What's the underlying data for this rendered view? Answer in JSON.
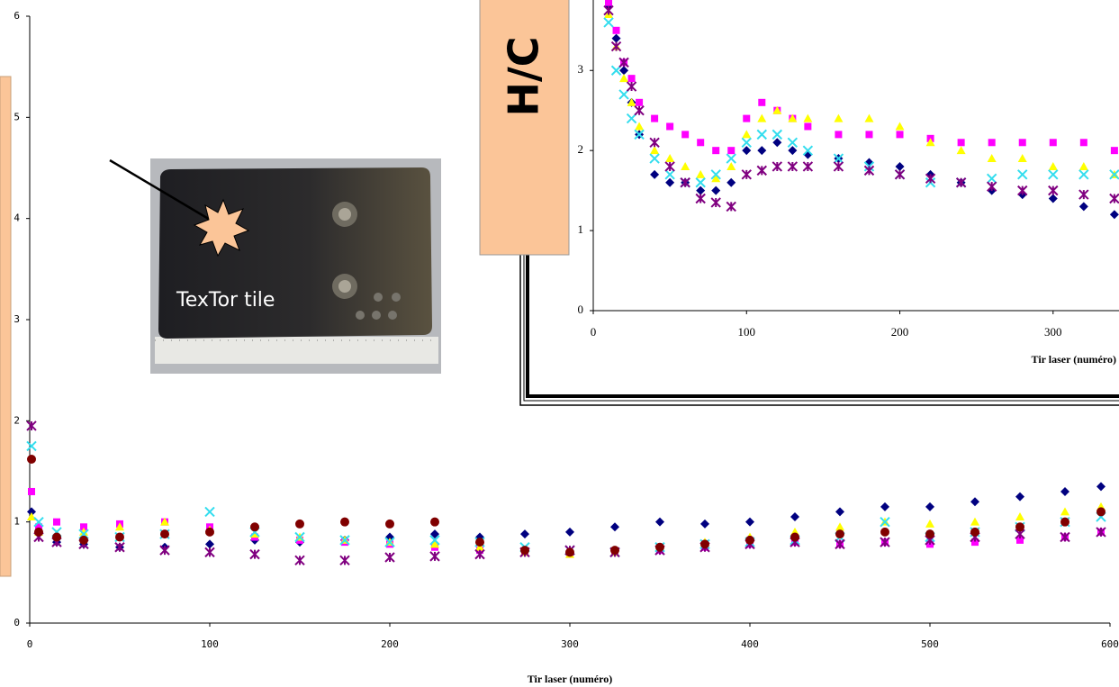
{
  "chart_data": [
    {
      "type": "scatter",
      "xlabel": "Tir laser (numéro)",
      "annotations": [
        "TexTor tile"
      ],
      "xlim": [
        0,
        600
      ],
      "ylim": [
        0,
        6
      ],
      "xticks": [
        0,
        100,
        200,
        300,
        400,
        500,
        600
      ],
      "yticks": [
        0,
        1,
        2,
        3,
        4,
        5,
        6
      ],
      "x": [
        1,
        5,
        15,
        30,
        50,
        75,
        100,
        125,
        150,
        175,
        200,
        225,
        250,
        275,
        300,
        325,
        350,
        375,
        400,
        425,
        450,
        475,
        500,
        525,
        550,
        575,
        595
      ],
      "series": [
        {
          "color": "#000080",
          "marker": "diamond",
          "values": [
            1.1,
            0.9,
            0.8,
            0.78,
            0.75,
            0.75,
            0.78,
            0.82,
            0.8,
            0.82,
            0.85,
            0.88,
            0.85,
            0.88,
            0.9,
            0.95,
            1.0,
            0.98,
            1.0,
            1.05,
            1.1,
            1.15,
            1.15,
            1.2,
            1.25,
            1.3,
            1.35
          ]
        },
        {
          "color": "#ff00ff",
          "marker": "square",
          "values": [
            1.3,
            0.95,
            1.0,
            0.95,
            0.98,
            1.0,
            0.95,
            0.85,
            0.82,
            0.8,
            0.78,
            0.75,
            0.72,
            0.7,
            0.68,
            0.7,
            0.72,
            0.75,
            0.78,
            0.8,
            0.78,
            0.8,
            0.78,
            0.8,
            0.82,
            0.85,
            0.9
          ]
        },
        {
          "color": "#ffff00",
          "marker": "triangle",
          "values": [
            1.05,
            0.9,
            0.88,
            0.9,
            0.95,
            1.0,
            0.92,
            0.88,
            0.85,
            0.82,
            0.8,
            0.78,
            0.75,
            0.7,
            0.68,
            0.7,
            0.75,
            0.8,
            0.85,
            0.9,
            0.95,
            1.0,
            0.98,
            1.0,
            1.05,
            1.1,
            1.15
          ]
        },
        {
          "color": "#33ddee",
          "marker": "cross",
          "values": [
            1.75,
            1.0,
            0.9,
            0.88,
            0.85,
            0.88,
            1.1,
            0.9,
            0.85,
            0.82,
            0.8,
            0.82,
            0.8,
            0.75,
            0.72,
            0.7,
            0.75,
            0.78,
            0.8,
            0.82,
            0.85,
            1.0,
            0.85,
            0.9,
            0.95,
            1.0,
            1.05
          ]
        },
        {
          "color": "#800080",
          "marker": "star",
          "values": [
            1.95,
            0.85,
            0.8,
            0.78,
            0.75,
            0.72,
            0.7,
            0.68,
            0.62,
            0.62,
            0.65,
            0.66,
            0.68,
            0.7,
            0.72,
            0.7,
            0.72,
            0.75,
            0.78,
            0.8,
            0.78,
            0.8,
            0.82,
            0.85,
            0.88,
            0.85,
            0.9
          ]
        },
        {
          "color": "#800000",
          "marker": "circle",
          "values": [
            1.62,
            0.9,
            0.85,
            0.82,
            0.85,
            0.88,
            0.9,
            0.95,
            0.98,
            1.0,
            0.98,
            1.0,
            0.8,
            0.72,
            0.7,
            0.72,
            0.75,
            0.78,
            0.82,
            0.85,
            0.88,
            0.9,
            0.88,
            0.9,
            0.95,
            1.0,
            1.1
          ]
        }
      ]
    },
    {
      "type": "scatter",
      "xlabel": "Tir laser (numéro)",
      "ylabel": "H/C",
      "xlim": [
        0,
        343
      ],
      "ylim": [
        0,
        3.88
      ],
      "xticks": [
        0,
        100,
        200,
        300
      ],
      "yticks": [
        0,
        1,
        2,
        3
      ],
      "x": [
        10,
        15,
        20,
        25,
        30,
        40,
        50,
        60,
        70,
        80,
        90,
        100,
        110,
        120,
        130,
        140,
        160,
        180,
        200,
        220,
        240,
        260,
        280,
        300,
        320,
        340
      ],
      "series": [
        {
          "color": "#000080",
          "marker": "diamond",
          "values": [
            3.8,
            3.4,
            3.0,
            2.6,
            2.2,
            1.7,
            1.6,
            1.6,
            1.5,
            1.5,
            1.6,
            2.0,
            2.0,
            2.1,
            2.0,
            1.95,
            1.9,
            1.85,
            1.8,
            1.7,
            1.6,
            1.5,
            1.45,
            1.4,
            1.3,
            1.2
          ]
        },
        {
          "color": "#ff00ff",
          "marker": "square",
          "values": [
            3.85,
            3.5,
            3.1,
            2.9,
            2.6,
            2.4,
            2.3,
            2.2,
            2.1,
            2.0,
            2.0,
            2.4,
            2.6,
            2.5,
            2.4,
            2.3,
            2.2,
            2.2,
            2.2,
            2.15,
            2.1,
            2.1,
            2.1,
            2.1,
            2.1,
            2.0
          ]
        },
        {
          "color": "#ffff00",
          "marker": "triangle",
          "values": [
            3.7,
            3.3,
            2.9,
            2.6,
            2.3,
            2.0,
            1.9,
            1.8,
            1.7,
            1.65,
            1.8,
            2.2,
            2.4,
            2.5,
            2.4,
            2.4,
            2.4,
            2.4,
            2.3,
            2.1,
            2.0,
            1.9,
            1.9,
            1.8,
            1.8,
            1.7
          ]
        },
        {
          "color": "#33ddee",
          "marker": "cross",
          "values": [
            3.6,
            3.0,
            2.7,
            2.4,
            2.2,
            1.9,
            1.7,
            1.6,
            1.6,
            1.7,
            1.9,
            2.1,
            2.2,
            2.2,
            2.1,
            2.0,
            1.9,
            1.8,
            1.7,
            1.6,
            1.6,
            1.65,
            1.7,
            1.7,
            1.7,
            1.7
          ]
        },
        {
          "color": "#800080",
          "marker": "star",
          "values": [
            3.75,
            3.3,
            3.1,
            2.8,
            2.5,
            2.1,
            1.8,
            1.6,
            1.4,
            1.35,
            1.3,
            1.7,
            1.75,
            1.8,
            1.8,
            1.8,
            1.8,
            1.75,
            1.7,
            1.65,
            1.6,
            1.55,
            1.5,
            1.5,
            1.45,
            1.4
          ]
        }
      ]
    }
  ]
}
